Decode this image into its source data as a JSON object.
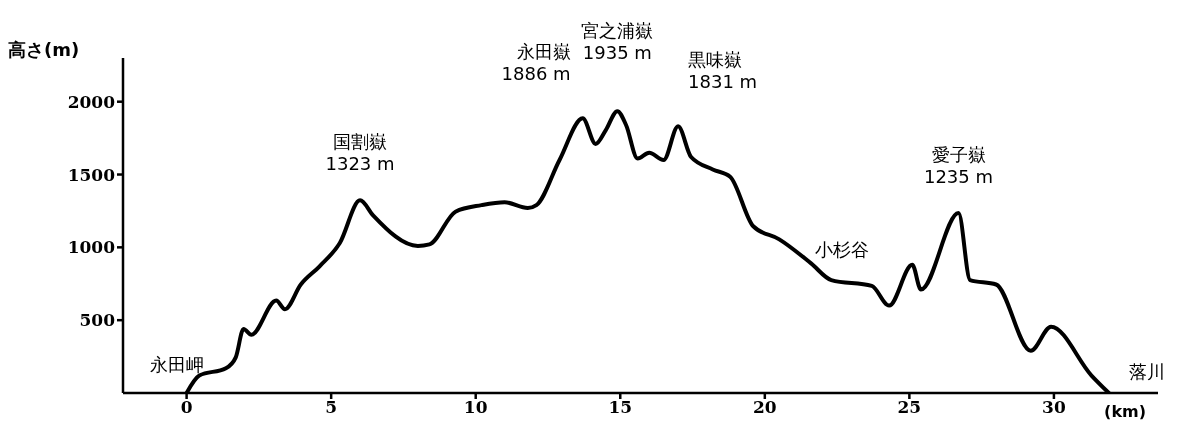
{
  "chart_data": {
    "type": "line",
    "ylabel": "高さ(m)",
    "xlabel": "(km)",
    "x": [
      0,
      0.44,
      1.36,
      1.7,
      1.97,
      2.24,
      3.1,
      3.4,
      3.95,
      4.6,
      5.3,
      6.0,
      6.45,
      8.0,
      8.4,
      9.3,
      10.2,
      11.0,
      11.8,
      12.1,
      12.9,
      13.7,
      14.15,
      14.5,
      14.9,
      15.2,
      15.6,
      16.0,
      16.5,
      17.0,
      17.45,
      18.2,
      18.8,
      19.6,
      20.5,
      21.6,
      22.3,
      23.7,
      24.3,
      25.1,
      25.4,
      26.7,
      27.1,
      28.0,
      29.2,
      29.9,
      31.3,
      31.9
    ],
    "series": [
      {
        "color": "#000000",
        "values": [
          0,
          120,
          170,
          245,
          440,
          400,
          635,
          575,
          745,
          870,
          1030,
          1323,
          1220,
          1010,
          1020,
          1245,
          1290,
          1310,
          1270,
          1290,
          1600,
          1886,
          1710,
          1805,
          1935,
          1840,
          1610,
          1650,
          1600,
          1831,
          1620,
          1535,
          1485,
          1145,
          1055,
          890,
          775,
          735,
          600,
          880,
          710,
          1235,
          775,
          745,
          290,
          455,
          120,
          0
        ]
      }
    ],
    "xlim": [
      -2.2,
      33.6
    ],
    "ylim": [
      0,
      2300
    ],
    "xticks": [
      0,
      5,
      10,
      15,
      20,
      25,
      30
    ],
    "yticks": [
      500,
      1000,
      1500,
      2000
    ],
    "grid": false,
    "legend": false,
    "marker": "none",
    "line_style": "solid",
    "annotations": [
      {
        "text": "永田岬",
        "x": 0,
        "y": 0
      },
      {
        "text": "国割嶽\n1323 m",
        "x": 6.0,
        "y": 1323
      },
      {
        "text": "永田嶽\n1886 m",
        "x": 13.7,
        "y": 1886
      },
      {
        "text": "宮之浦嶽\n1935 m",
        "x": 14.9,
        "y": 1935
      },
      {
        "text": "黒味嶽\n1831 m",
        "x": 17.0,
        "y": 1831
      },
      {
        "text": "小杉谷",
        "x": 24.3,
        "y": 600
      },
      {
        "text": "愛子嶽\n1235 m",
        "x": 26.7,
        "y": 1235
      },
      {
        "text": "落川",
        "x": 31.9,
        "y": 0
      }
    ]
  }
}
